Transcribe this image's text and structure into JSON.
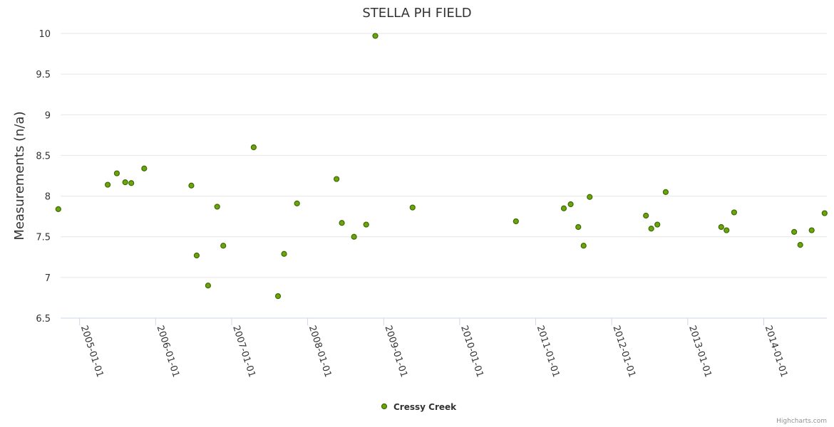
{
  "chart_data": {
    "type": "scatter",
    "title": "STELLA PH FIELD",
    "xlabel": "",
    "ylabel": "Measurements (n/a)",
    "ylim": [
      6.5,
      10
    ],
    "yticks": [
      "6.5",
      "7",
      "7.5",
      "8",
      "8.5",
      "9",
      "9.5",
      "10"
    ],
    "xlim_years": [
      2004.75,
      2014.83
    ],
    "xticks": [
      {
        "label": "2005-01-01",
        "year": 2005
      },
      {
        "label": "2006-01-01",
        "year": 2006
      },
      {
        "label": "2007-01-01",
        "year": 2007
      },
      {
        "label": "2008-01-01",
        "year": 2008
      },
      {
        "label": "2009-01-01",
        "year": 2009
      },
      {
        "label": "2010-01-01",
        "year": 2010
      },
      {
        "label": "2011-01-01",
        "year": 2011
      },
      {
        "label": "2012-01-01",
        "year": 2012
      },
      {
        "label": "2013-01-01",
        "year": 2013
      },
      {
        "label": "2014-01-01",
        "year": 2014
      }
    ],
    "grid": true,
    "legend_position": "bottom-center",
    "series": [
      {
        "name": "Cressy Creek",
        "color": "#6aa40f",
        "points": [
          {
            "x": 2004.72,
            "y": 7.84
          },
          {
            "x": 2005.37,
            "y": 8.14
          },
          {
            "x": 2005.49,
            "y": 8.28
          },
          {
            "x": 2005.6,
            "y": 8.17
          },
          {
            "x": 2005.68,
            "y": 8.16
          },
          {
            "x": 2005.85,
            "y": 8.34
          },
          {
            "x": 2006.47,
            "y": 8.13
          },
          {
            "x": 2006.54,
            "y": 7.27
          },
          {
            "x": 2006.69,
            "y": 6.9
          },
          {
            "x": 2006.81,
            "y": 7.87
          },
          {
            "x": 2006.89,
            "y": 7.39
          },
          {
            "x": 2007.29,
            "y": 8.6
          },
          {
            "x": 2007.61,
            "y": 6.77
          },
          {
            "x": 2007.69,
            "y": 7.29
          },
          {
            "x": 2007.86,
            "y": 7.91
          },
          {
            "x": 2008.38,
            "y": 8.21
          },
          {
            "x": 2008.45,
            "y": 7.67
          },
          {
            "x": 2008.61,
            "y": 7.5
          },
          {
            "x": 2008.77,
            "y": 7.65
          },
          {
            "x": 2008.89,
            "y": 9.97
          },
          {
            "x": 2009.38,
            "y": 7.86
          },
          {
            "x": 2010.74,
            "y": 7.69
          },
          {
            "x": 2011.37,
            "y": 7.85
          },
          {
            "x": 2011.46,
            "y": 7.9
          },
          {
            "x": 2011.56,
            "y": 7.62
          },
          {
            "x": 2011.63,
            "y": 7.39
          },
          {
            "x": 2011.71,
            "y": 7.99
          },
          {
            "x": 2012.45,
            "y": 7.76
          },
          {
            "x": 2012.52,
            "y": 7.6
          },
          {
            "x": 2012.6,
            "y": 7.65
          },
          {
            "x": 2012.71,
            "y": 8.05
          },
          {
            "x": 2013.44,
            "y": 7.62
          },
          {
            "x": 2013.51,
            "y": 7.58
          },
          {
            "x": 2013.61,
            "y": 7.8
          },
          {
            "x": 2014.4,
            "y": 7.56
          },
          {
            "x": 2014.48,
            "y": 7.4
          },
          {
            "x": 2014.63,
            "y": 7.58
          },
          {
            "x": 2014.8,
            "y": 7.79
          }
        ]
      }
    ]
  },
  "credits": "Highcharts.com"
}
